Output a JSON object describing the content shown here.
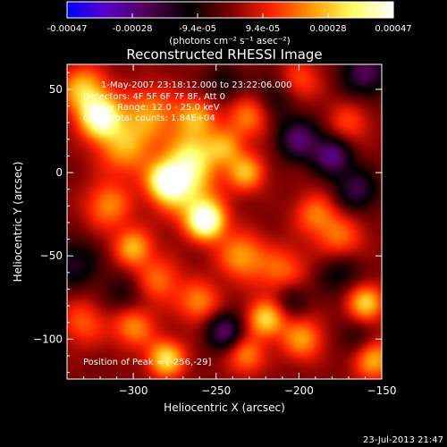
{
  "colorbar": {
    "tick_labels": [
      "-0.00047",
      "-0.00028",
      "-9.4e-05",
      "9.4e-05",
      "0.00028",
      "0.00047"
    ],
    "unit_label": "(photons cm⁻² s⁻¹ asec⁻²)",
    "range": [
      -0.00047,
      0.00047
    ],
    "gradient_colors": [
      "#0000ff",
      "#5a00c8",
      "#500050",
      "#000000",
      "#7a0000",
      "#ff2000",
      "#ff9a00",
      "#ffff60",
      "#ffffff"
    ]
  },
  "chart_data": {
    "type": "heatmap",
    "title": "Reconstructed RHESSI Image",
    "xlabel": "Heliocentric X (arcsec)",
    "ylabel": "Heliocentric Y (arcsec)",
    "xlim": [
      -340,
      -150
    ],
    "ylim": [
      -124,
      65
    ],
    "x_ticks": [
      -300,
      -250,
      -200,
      -150
    ],
    "y_ticks": [
      50,
      0,
      -50,
      -100
    ],
    "x_tick_labels": [
      "−300",
      "−250",
      "−200",
      "−150"
    ],
    "y_tick_labels": [
      "50",
      "0",
      "−50",
      "−100"
    ],
    "annotations": [
      "1-May-2007 23:18:12.000 to 23:22:06.000",
      "Detectors: 4F 5F 6F 7F 8F, Att 0",
      "Energy Range: 12.0 - 25.0 keV",
      "Clean     Total counts: 1.84E+04"
    ],
    "peak_label": "Position of Peak = [-256,-29]",
    "peak": {
      "x": -256,
      "y": -29,
      "value": 0.00047
    },
    "blobs": [
      {
        "x": -256,
        "y": -29,
        "amp": 1.0,
        "s": 8
      },
      {
        "x": -268,
        "y": -10,
        "amp": 0.6,
        "s": 13
      },
      {
        "x": -320,
        "y": 33,
        "amp": 0.9,
        "s": 9
      },
      {
        "x": -330,
        "y": 50,
        "amp": 0.6,
        "s": 10
      },
      {
        "x": -305,
        "y": 15,
        "amp": 0.5,
        "s": 12
      },
      {
        "x": -280,
        "y": -5,
        "amp": 0.8,
        "s": 8
      },
      {
        "x": -290,
        "y": 35,
        "amp": 0.45,
        "s": 12
      },
      {
        "x": -262,
        "y": 33,
        "amp": 0.5,
        "s": 9
      },
      {
        "x": -265,
        "y": 10,
        "amp": 0.6,
        "s": 10
      },
      {
        "x": -245,
        "y": 15,
        "amp": 0.45,
        "s": 8
      },
      {
        "x": -230,
        "y": 35,
        "amp": 0.45,
        "s": 10
      },
      {
        "x": -232,
        "y": 0,
        "amp": 0.55,
        "s": 8
      },
      {
        "x": -315,
        "y": -20,
        "amp": 0.45,
        "s": 10
      },
      {
        "x": -300,
        "y": -45,
        "amp": 0.55,
        "s": 8
      },
      {
        "x": -285,
        "y": -65,
        "amp": 0.4,
        "s": 10
      },
      {
        "x": -235,
        "y": -50,
        "amp": 0.5,
        "s": 10
      },
      {
        "x": -210,
        "y": -60,
        "amp": 0.4,
        "s": 11
      },
      {
        "x": -260,
        "y": -78,
        "amp": 0.45,
        "s": 9
      },
      {
        "x": -220,
        "y": -88,
        "amp": 0.65,
        "s": 8
      },
      {
        "x": -198,
        "y": -100,
        "amp": 0.5,
        "s": 9
      },
      {
        "x": -300,
        "y": -92,
        "amp": 0.5,
        "s": 9
      },
      {
        "x": -280,
        "y": -112,
        "amp": 0.7,
        "s": 8
      },
      {
        "x": -160,
        "y": -78,
        "amp": 0.65,
        "s": 8
      },
      {
        "x": -155,
        "y": -112,
        "amp": 0.55,
        "s": 9
      },
      {
        "x": -175,
        "y": -40,
        "amp": 0.4,
        "s": 10
      },
      {
        "x": -190,
        "y": -25,
        "amp": 0.4,
        "s": 9
      },
      {
        "x": -170,
        "y": 30,
        "amp": 0.3,
        "s": 9
      },
      {
        "x": -200,
        "y": 55,
        "amp": 0.35,
        "s": 9
      },
      {
        "x": -330,
        "y": -90,
        "amp": 0.35,
        "s": 10
      },
      {
        "x": -232,
        "y": -110,
        "amp": 0.45,
        "s": 8
      },
      {
        "x": -200,
        "y": 20,
        "amp": -0.55,
        "s": 9
      },
      {
        "x": -180,
        "y": 10,
        "amp": -0.6,
        "s": 8
      },
      {
        "x": -160,
        "y": 60,
        "amp": -0.5,
        "s": 10
      },
      {
        "x": -165,
        "y": -10,
        "amp": -0.45,
        "s": 9
      },
      {
        "x": -175,
        "y": -60,
        "amp": -0.3,
        "s": 10
      },
      {
        "x": -245,
        "y": -95,
        "amp": -0.55,
        "s": 8
      },
      {
        "x": -335,
        "y": -55,
        "amp": -0.35,
        "s": 10
      },
      {
        "x": -305,
        "y": -75,
        "amp": -0.25,
        "s": 10
      },
      {
        "x": -205,
        "y": -75,
        "amp": -0.3,
        "s": 8
      },
      {
        "x": -215,
        "y": 45,
        "amp": -0.3,
        "s": 10
      },
      {
        "x": -245,
        "y": 52,
        "amp": -0.25,
        "s": 9
      },
      {
        "x": -165,
        "y": -100,
        "amp": -0.25,
        "s": 8
      }
    ]
  },
  "footer": {
    "timestamp": "23-Jul-2013 21:47"
  }
}
